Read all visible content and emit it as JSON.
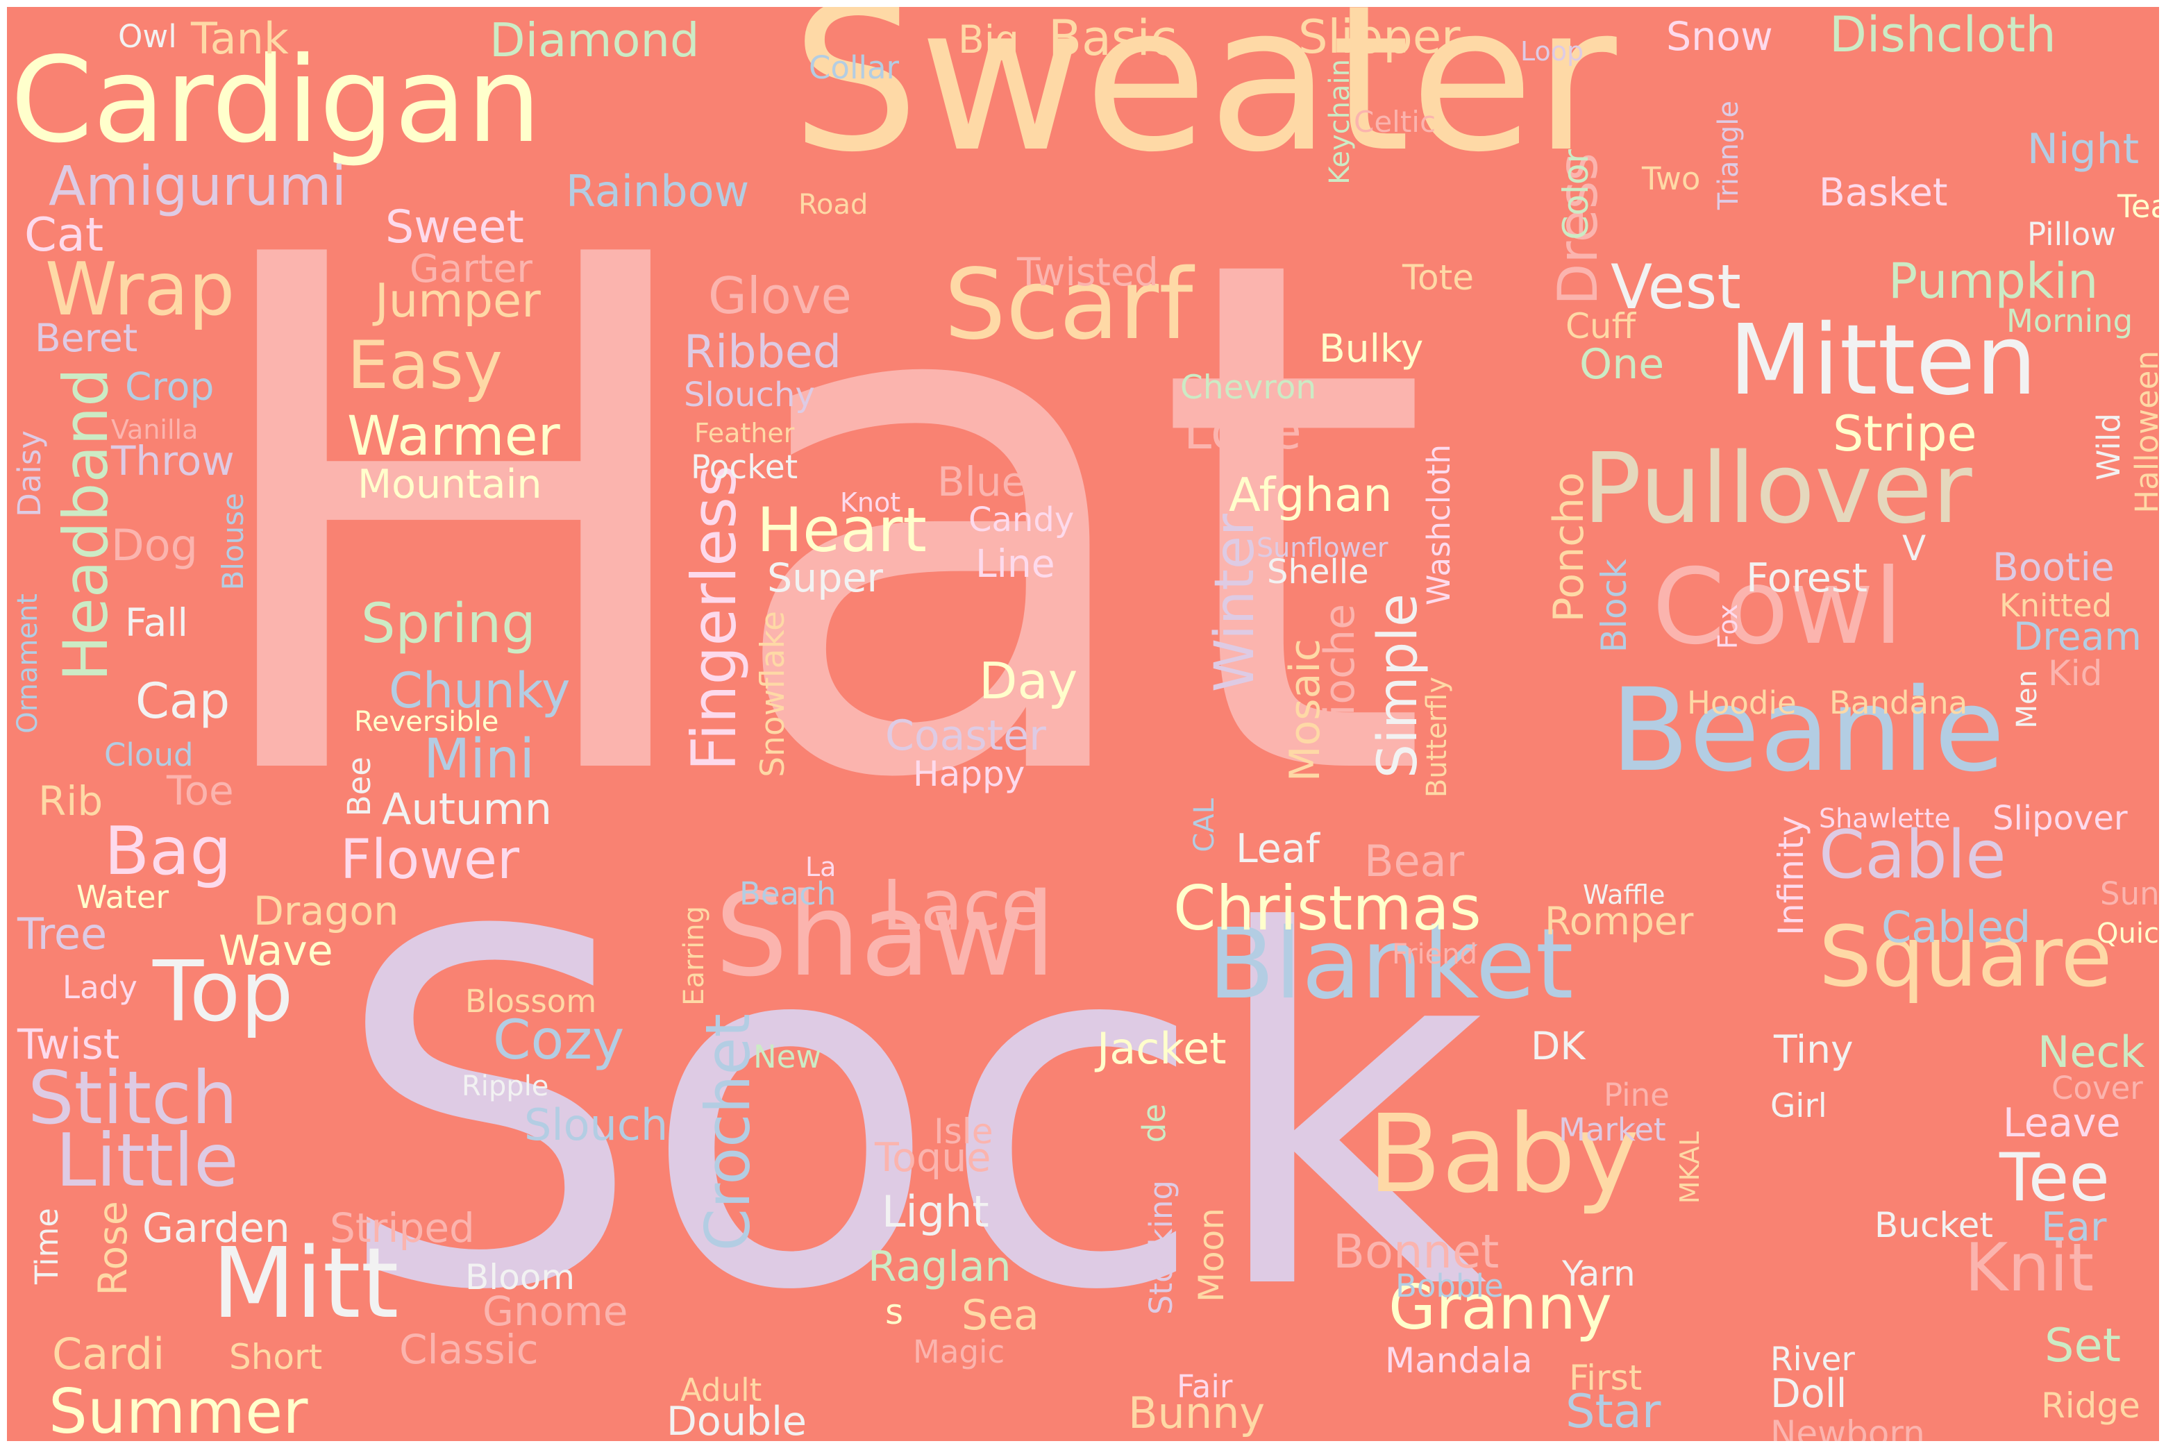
{
  "background_color": "#f98272",
  "words": [
    {
      "text": "Hat",
      "color": "#fbb4ae"
    },
    {
      "text": "Sock",
      "color": "#decbe4"
    },
    {
      "text": "Sweater",
      "color": "#fed9a6"
    },
    {
      "text": "Cardigan",
      "color": "#ffffcc"
    },
    {
      "text": "Shawl",
      "color": "#fbb4ae"
    },
    {
      "text": "Beanie",
      "color": "#b3cde3"
    },
    {
      "text": "Cowl",
      "color": "#fbb4ae"
    },
    {
      "text": "Scarf",
      "color": "#fed9a6"
    },
    {
      "text": "Mitten",
      "color": "#f2f2f2"
    },
    {
      "text": "Pullover",
      "color": "#e5d8bd"
    },
    {
      "text": "Blanket",
      "color": "#b3cde3"
    },
    {
      "text": "Baby",
      "color": "#fed9a6"
    },
    {
      "text": "Mitt",
      "color": "#f2f2f2"
    },
    {
      "text": "Top",
      "color": "#f2f2f2"
    },
    {
      "text": "Square",
      "color": "#fed9a6"
    },
    {
      "text": "Granny",
      "color": "#ffffcc"
    },
    {
      "text": "Christmas",
      "color": "#ffffcc"
    },
    {
      "text": "Stitch",
      "color": "#decbe4"
    },
    {
      "text": "Little",
      "color": "#decbe4"
    },
    {
      "text": "Lace",
      "color": "#fbb4ae"
    },
    {
      "text": "Wrap",
      "color": "#fed9a6"
    },
    {
      "text": "Amigurumi",
      "color": "#decbe4"
    },
    {
      "text": "Headband",
      "color": "#ccebc5"
    },
    {
      "text": "Fingerless",
      "color": "#fddaec"
    },
    {
      "text": "Crochet",
      "color": "#b3cde3"
    },
    {
      "text": "Dress",
      "color": "#fbb4ae"
    },
    {
      "text": "Vest",
      "color": "#f2f2f2"
    },
    {
      "text": "Knit",
      "color": "#fbb4ae"
    },
    {
      "text": "Tee",
      "color": "#f2f2f2"
    },
    {
      "text": "Cable",
      "color": "#decbe4"
    },
    {
      "text": "Bag",
      "color": "#fddaec"
    },
    {
      "text": "Summer",
      "color": "#ffffcc"
    },
    {
      "text": "Heart",
      "color": "#ffffcc"
    },
    {
      "text": "Easy",
      "color": "#fed9a6"
    },
    {
      "text": "Winter",
      "color": "#decbe4"
    },
    {
      "text": "Simple",
      "color": "#f2f2f2"
    },
    {
      "text": "Cozy",
      "color": "#b3cde3"
    },
    {
      "text": "Flower",
      "color": "#fddaec"
    },
    {
      "text": "Spring",
      "color": "#ccebc5"
    },
    {
      "text": "Mini",
      "color": "#b3cde3"
    },
    {
      "text": "Jumper",
      "color": "#fed9a6"
    },
    {
      "text": "Warmer",
      "color": "#ffffcc"
    },
    {
      "text": "Pumpkin",
      "color": "#ccebc5"
    },
    {
      "text": "Stripe",
      "color": "#ffffcc"
    },
    {
      "text": "Poncho",
      "color": "#fed9a6"
    },
    {
      "text": "Afghan",
      "color": "#ffffcc"
    },
    {
      "text": "Mosaic",
      "color": "#fed9a6"
    },
    {
      "text": "Brioche",
      "color": "#fbb4ae"
    },
    {
      "text": "Basic",
      "color": "#fed9a6"
    },
    {
      "text": "Diamond",
      "color": "#ccebc5"
    },
    {
      "text": "Slipper",
      "color": "#fed9a6"
    },
    {
      "text": "Dishcloth",
      "color": "#ccebc5"
    },
    {
      "text": "Snow",
      "color": "#fddaec"
    },
    {
      "text": "Tank",
      "color": "#fed9a6"
    },
    {
      "text": "Owl",
      "color": "#f2f2f2"
    },
    {
      "text": "Big",
      "color": "#fed9a6"
    },
    {
      "text": "Collar",
      "color": "#b3cde3"
    },
    {
      "text": "Loop",
      "color": "#decbe4"
    },
    {
      "text": "Keychain",
      "color": "#ccebc5"
    },
    {
      "text": "Celtic",
      "color": "#fbb4ae"
    },
    {
      "text": "Color",
      "color": "#ccebc5"
    },
    {
      "text": "Triangle",
      "color": "#decbe4"
    },
    {
      "text": "Rainbow",
      "color": "#b3cde3"
    },
    {
      "text": "Road",
      "color": "#fed9a6"
    },
    {
      "text": "Two",
      "color": "#fed9a6"
    },
    {
      "text": "Night",
      "color": "#b3cde3"
    },
    {
      "text": "Basket",
      "color": "#fddaec"
    },
    {
      "text": "Tea",
      "color": "#ffffcc"
    },
    {
      "text": "Cat",
      "color": "#fddaec"
    },
    {
      "text": "Sweet",
      "color": "#fddaec"
    },
    {
      "text": "Garter",
      "color": "#fbb4ae"
    },
    {
      "text": "Pillow",
      "color": "#f2f2f2"
    },
    {
      "text": "Twisted",
      "color": "#fbb4ae"
    },
    {
      "text": "Tote",
      "color": "#fed9a6"
    },
    {
      "text": "Morning",
      "color": "#ccebc5"
    },
    {
      "text": "Glove",
      "color": "#fbb4ae"
    },
    {
      "text": "Beret",
      "color": "#decbe4"
    },
    {
      "text": "Cuff",
      "color": "#fed9a6"
    },
    {
      "text": "Ribbed",
      "color": "#decbe4"
    },
    {
      "text": "Bulky",
      "color": "#ffffcc"
    },
    {
      "text": "One",
      "color": "#ccebc5"
    },
    {
      "text": "Crop",
      "color": "#b3cde3"
    },
    {
      "text": "Slouchy",
      "color": "#decbe4"
    },
    {
      "text": "Chevron",
      "color": "#ccebc5"
    },
    {
      "text": "Halloween",
      "color": "#fed9a6"
    },
    {
      "text": "Wild",
      "color": "#f2f2f2"
    },
    {
      "text": "Vanilla",
      "color": "#fbb4ae"
    },
    {
      "text": "Feather",
      "color": "#fed9a6"
    },
    {
      "text": "Love",
      "color": "#fbb4ae"
    },
    {
      "text": "Throw",
      "color": "#decbe4"
    },
    {
      "text": "Pocket",
      "color": "#f2f2f2"
    },
    {
      "text": "Daisy",
      "color": "#decbe4"
    },
    {
      "text": "Mountain",
      "color": "#ffffcc"
    },
    {
      "text": "Blue",
      "color": "#fbb4ae"
    },
    {
      "text": "Knot",
      "color": "#fddaec"
    },
    {
      "text": "Candy",
      "color": "#fddaec"
    },
    {
      "text": "Washcloth",
      "color": "#fddaec"
    },
    {
      "text": "Blouse",
      "color": "#b3cde3"
    },
    {
      "text": "Dog",
      "color": "#fbb4ae"
    },
    {
      "text": "Sunflower",
      "color": "#decbe4"
    },
    {
      "text": "Shelle",
      "color": "#f2f2f2"
    },
    {
      "text": "Line",
      "color": "#fddaec"
    },
    {
      "text": "Super",
      "color": "#f2f2f2"
    },
    {
      "text": "V",
      "color": "#f2f2f2"
    },
    {
      "text": "Bootie",
      "color": "#decbe4"
    },
    {
      "text": "Forest",
      "color": "#f2f2f2"
    },
    {
      "text": "Block",
      "color": "#b3cde3"
    },
    {
      "text": "Knitted",
      "color": "#fed9a6"
    },
    {
      "text": "Ornament",
      "color": "#b3cde3"
    },
    {
      "text": "Fall",
      "color": "#f2f2f2"
    },
    {
      "text": "Fox",
      "color": "#fddaec"
    },
    {
      "text": "Dream",
      "color": "#b3cde3"
    },
    {
      "text": "Snowflake",
      "color": "#fed9a6"
    },
    {
      "text": "Kid",
      "color": "#fbb4ae"
    },
    {
      "text": "Men",
      "color": "#f2f2f2"
    },
    {
      "text": "Day",
      "color": "#ffffcc"
    },
    {
      "text": "Cap",
      "color": "#f2f2f2"
    },
    {
      "text": "Chunky",
      "color": "#b3cde3"
    },
    {
      "text": "Reversible",
      "color": "#ffffcc"
    },
    {
      "text": "Hoodie",
      "color": "#fed9a6"
    },
    {
      "text": "Bandana",
      "color": "#fed9a6"
    },
    {
      "text": "Butterfly",
      "color": "#fed9a6"
    },
    {
      "text": "Cloud",
      "color": "#b3cde3"
    },
    {
      "text": "Coaster",
      "color": "#decbe4"
    },
    {
      "text": "Happy",
      "color": "#fddaec"
    },
    {
      "text": "Bee",
      "color": "#f2f2f2"
    },
    {
      "text": "Autumn",
      "color": "#f2f2f2"
    },
    {
      "text": "Rib",
      "color": "#fed9a6"
    },
    {
      "text": "Toe",
      "color": "#fbb4ae"
    },
    {
      "text": "CAL",
      "color": "#b3cde3"
    },
    {
      "text": "Shawlette",
      "color": "#fddaec"
    },
    {
      "text": "Slipover",
      "color": "#fddaec"
    },
    {
      "text": "Leaf",
      "color": "#f2f2f2"
    },
    {
      "text": "Bear",
      "color": "#fbb4ae"
    },
    {
      "text": "Infinity",
      "color": "#fddaec"
    },
    {
      "text": "Beach",
      "color": "#b3cde3"
    },
    {
      "text": "La",
      "color": "#fddaec"
    },
    {
      "text": "Water",
      "color": "#ffffcc"
    },
    {
      "text": "Waffle",
      "color": "#f2f2f2"
    },
    {
      "text": "Sun",
      "color": "#fbb4ae"
    },
    {
      "text": "Tree",
      "color": "#decbe4"
    },
    {
      "text": "Dragon",
      "color": "#fed9a6"
    },
    {
      "text": "Earring",
      "color": "#fed9a6"
    },
    {
      "text": "Romper",
      "color": "#fed9a6"
    },
    {
      "text": "Cabled",
      "color": "#b3cde3"
    },
    {
      "text": "Quick",
      "color": "#ffffcc"
    },
    {
      "text": "Wave",
      "color": "#ffffcc"
    },
    {
      "text": "Friend",
      "color": "#fbb4ae"
    },
    {
      "text": "Lady",
      "color": "#fddaec"
    },
    {
      "text": "Blossom",
      "color": "#fed9a6"
    },
    {
      "text": "Twist",
      "color": "#fddaec"
    },
    {
      "text": "Jacket",
      "color": "#ffffcc"
    },
    {
      "text": "DK",
      "color": "#f2f2f2"
    },
    {
      "text": "Tiny",
      "color": "#f2f2f2"
    },
    {
      "text": "Neck",
      "color": "#ccebc5"
    },
    {
      "text": "New",
      "color": "#ccebc5"
    },
    {
      "text": "Ripple",
      "color": "#f2f2f2"
    },
    {
      "text": "Slouch",
      "color": "#b3cde3"
    },
    {
      "text": "Pine",
      "color": "#fbb4ae"
    },
    {
      "text": "Market",
      "color": "#decbe4"
    },
    {
      "text": "Girl",
      "color": "#f2f2f2"
    },
    {
      "text": "Cover",
      "color": "#fbb4ae"
    },
    {
      "text": "Leave",
      "color": "#fddaec"
    },
    {
      "text": "Isle",
      "color": "#fbb4ae"
    },
    {
      "text": "de",
      "color": "#ccebc5"
    },
    {
      "text": "Toque",
      "color": "#fbb4ae"
    },
    {
      "text": "MKAL",
      "color": "#fed9a6"
    },
    {
      "text": "Time",
      "color": "#f2f2f2"
    },
    {
      "text": "Rose",
      "color": "#fed9a6"
    },
    {
      "text": "Garden",
      "color": "#f2f2f2"
    },
    {
      "text": "Striped",
      "color": "#fbb4ae"
    },
    {
      "text": "Light",
      "color": "#f2f2f2"
    },
    {
      "text": "Bonnet",
      "color": "#fbb4ae"
    },
    {
      "text": "Bucket",
      "color": "#f2f2f2"
    },
    {
      "text": "Ear",
      "color": "#b3cde3"
    },
    {
      "text": "Stocking",
      "color": "#decbe4"
    },
    {
      "text": "Moon",
      "color": "#fed9a6"
    },
    {
      "text": "Bloom",
      "color": "#f2f2f2"
    },
    {
      "text": "Raglan",
      "color": "#ccebc5"
    },
    {
      "text": "Bobble",
      "color": "#b3cde3"
    },
    {
      "text": "Yarn",
      "color": "#f2f2f2"
    },
    {
      "text": "s",
      "color": "#ffffcc"
    },
    {
      "text": "Sea",
      "color": "#fed9a6"
    },
    {
      "text": "Gnome",
      "color": "#fbb4ae"
    },
    {
      "text": "Cardi",
      "color": "#fed9a6"
    },
    {
      "text": "Short",
      "color": "#fed9a6"
    },
    {
      "text": "Classic",
      "color": "#fbb4ae"
    },
    {
      "text": "Magic",
      "color": "#fbb4ae"
    },
    {
      "text": "Mandala",
      "color": "#fddaec"
    },
    {
      "text": "River",
      "color": "#f2f2f2"
    },
    {
      "text": "Set",
      "color": "#ccebc5"
    },
    {
      "text": "Fair",
      "color": "#fddaec"
    },
    {
      "text": "First",
      "color": "#fed9a6"
    },
    {
      "text": "Adult",
      "color": "#fed9a6"
    },
    {
      "text": "Doll",
      "color": "#f2f2f2"
    },
    {
      "text": "Ridge",
      "color": "#fed9a6"
    },
    {
      "text": "Double",
      "color": "#f2f2f2"
    },
    {
      "text": "Bunny",
      "color": "#fed9a6"
    },
    {
      "text": "Star",
      "color": "#b3cde3"
    },
    {
      "text": "Newborn",
      "color": "#fbb4ae"
    }
  ]
}
